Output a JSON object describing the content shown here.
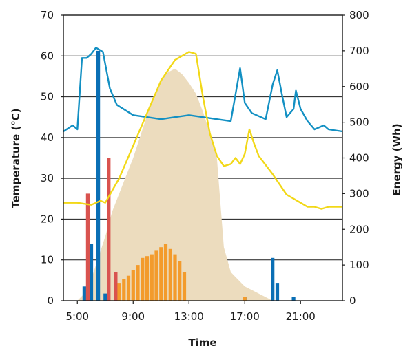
{
  "chart_data": {
    "type": "bar+line+area",
    "xlabel": "Time",
    "ylabel_left": "Temperature (°C)",
    "ylabel_right": "Energy (Wh)",
    "x_domain": [
      "4:00",
      "24:00"
    ],
    "x_ticks": [
      "5:00",
      "9:00",
      "13:00",
      "17:00",
      "21:00"
    ],
    "y_left": {
      "range": [
        0,
        70
      ],
      "ticks": [
        0,
        10,
        20,
        30,
        40,
        50,
        60,
        70
      ]
    },
    "y_right": {
      "range": [
        0,
        800
      ],
      "ticks": [
        0,
        100,
        200,
        300,
        400,
        500,
        600,
        700,
        800
      ]
    },
    "grid": "horizontal",
    "colors": {
      "line_blue": "#1390c3",
      "line_yellow": "#f2d818",
      "area": "#ecdcbe",
      "bar_blue": "#0a6fb5",
      "bar_red": "#d9534f",
      "bar_orange": "#f39b2c"
    },
    "area_series": {
      "axis": "right",
      "points": [
        [
          "5:00",
          0
        ],
        [
          "5:30",
          20
        ],
        [
          "6:00",
          60
        ],
        [
          "6:30",
          120
        ],
        [
          "7:00",
          180
        ],
        [
          "7:30",
          250
        ],
        [
          "8:00",
          300
        ],
        [
          "8:30",
          350
        ],
        [
          "9:00",
          400
        ],
        [
          "9:30",
          460
        ],
        [
          "10:00",
          520
        ],
        [
          "10:30",
          570
        ],
        [
          "11:00",
          620
        ],
        [
          "11:30",
          640
        ],
        [
          "12:00",
          650
        ],
        [
          "12:30",
          635
        ],
        [
          "13:00",
          610
        ],
        [
          "13:30",
          580
        ],
        [
          "14:00",
          530
        ],
        [
          "14:30",
          470
        ],
        [
          "15:00",
          400
        ],
        [
          "15:30",
          150
        ],
        [
          "16:00",
          80
        ],
        [
          "16:30",
          60
        ],
        [
          "17:00",
          40
        ],
        [
          "17:30",
          30
        ],
        [
          "18:00",
          20
        ],
        [
          "18:30",
          10
        ],
        [
          "19:00",
          0
        ]
      ]
    },
    "series": [
      {
        "axis": "left",
        "kind": "line",
        "points": [
          [
            "4:00",
            41.5
          ],
          [
            "4:40",
            43
          ],
          [
            "5:00",
            42
          ],
          [
            "5:20",
            59.5
          ],
          [
            "5:40",
            59.5
          ],
          [
            "6:00",
            60.5
          ],
          [
            "6:20",
            62
          ],
          [
            "6:50",
            61
          ],
          [
            "7:20",
            52
          ],
          [
            "7:50",
            48
          ],
          [
            "9:00",
            45.5
          ],
          [
            "10:00",
            45
          ],
          [
            "11:00",
            44.5
          ],
          [
            "12:00",
            45
          ],
          [
            "13:00",
            45.5
          ],
          [
            "14:00",
            45
          ],
          [
            "15:00",
            44.5
          ],
          [
            "16:00",
            44
          ],
          [
            "16:40",
            57
          ],
          [
            "17:00",
            48.5
          ],
          [
            "17:30",
            46
          ],
          [
            "18:30",
            44.5
          ],
          [
            "19:00",
            53
          ],
          [
            "19:20",
            56.5
          ],
          [
            "19:40",
            50.5
          ],
          [
            "20:00",
            45
          ],
          [
            "20:30",
            47
          ],
          [
            "20:40",
            51.5
          ],
          [
            "21:00",
            47
          ],
          [
            "21:30",
            44
          ],
          [
            "22:00",
            42
          ],
          [
            "22:40",
            43
          ],
          [
            "23:00",
            42
          ],
          [
            "24:00",
            41.5
          ]
        ]
      },
      {
        "axis": "left",
        "kind": "line",
        "points": [
          [
            "4:00",
            24
          ],
          [
            "5:00",
            24
          ],
          [
            "6:00",
            23.5
          ],
          [
            "6:40",
            24.5
          ],
          [
            "7:00",
            24
          ],
          [
            "7:30",
            27
          ],
          [
            "8:00",
            30
          ],
          [
            "9:00",
            38
          ],
          [
            "10:00",
            46
          ],
          [
            "11:00",
            54
          ],
          [
            "12:00",
            59
          ],
          [
            "13:00",
            61
          ],
          [
            "13:30",
            60.5
          ],
          [
            "14:00",
            50
          ],
          [
            "14:30",
            41
          ],
          [
            "15:00",
            35.5
          ],
          [
            "15:30",
            33
          ],
          [
            "16:00",
            33.5
          ],
          [
            "16:20",
            35
          ],
          [
            "16:40",
            33.5
          ],
          [
            "17:00",
            36
          ],
          [
            "17:20",
            42
          ],
          [
            "17:40",
            38.5
          ],
          [
            "18:00",
            35.5
          ],
          [
            "19:00",
            31
          ],
          [
            "20:00",
            26
          ],
          [
            "21:00",
            24
          ],
          [
            "21:30",
            23
          ],
          [
            "22:00",
            23
          ],
          [
            "22:30",
            22.5
          ],
          [
            "23:00",
            23
          ],
          [
            "24:00",
            23
          ]
        ]
      }
    ],
    "bar_series": [
      {
        "axis": "right",
        "color_key": "bar_blue",
        "bars": [
          [
            "5:30",
            40
          ],
          [
            "6:00",
            160
          ],
          [
            "6:30",
            700
          ],
          [
            "7:00",
            20
          ],
          [
            "17:00",
            10
          ],
          [
            "19:00",
            120
          ],
          [
            "19:20",
            50
          ],
          [
            "20:30",
            10
          ]
        ]
      },
      {
        "axis": "right",
        "color_key": "bar_red",
        "bars": [
          [
            "5:45",
            300
          ],
          [
            "7:15",
            400
          ],
          [
            "7:45",
            80
          ]
        ]
      },
      {
        "axis": "right",
        "color_key": "bar_orange",
        "bars": [
          [
            "8:00",
            50
          ],
          [
            "8:20",
            60
          ],
          [
            "8:40",
            70
          ],
          [
            "9:00",
            85
          ],
          [
            "9:20",
            100
          ],
          [
            "9:40",
            120
          ],
          [
            "10:00",
            125
          ],
          [
            "10:20",
            130
          ],
          [
            "10:40",
            140
          ],
          [
            "11:00",
            150
          ],
          [
            "11:20",
            158
          ],
          [
            "11:40",
            145
          ],
          [
            "12:00",
            130
          ],
          [
            "12:20",
            110
          ],
          [
            "12:40",
            80
          ],
          [
            "17:00",
            10
          ]
        ]
      }
    ]
  }
}
